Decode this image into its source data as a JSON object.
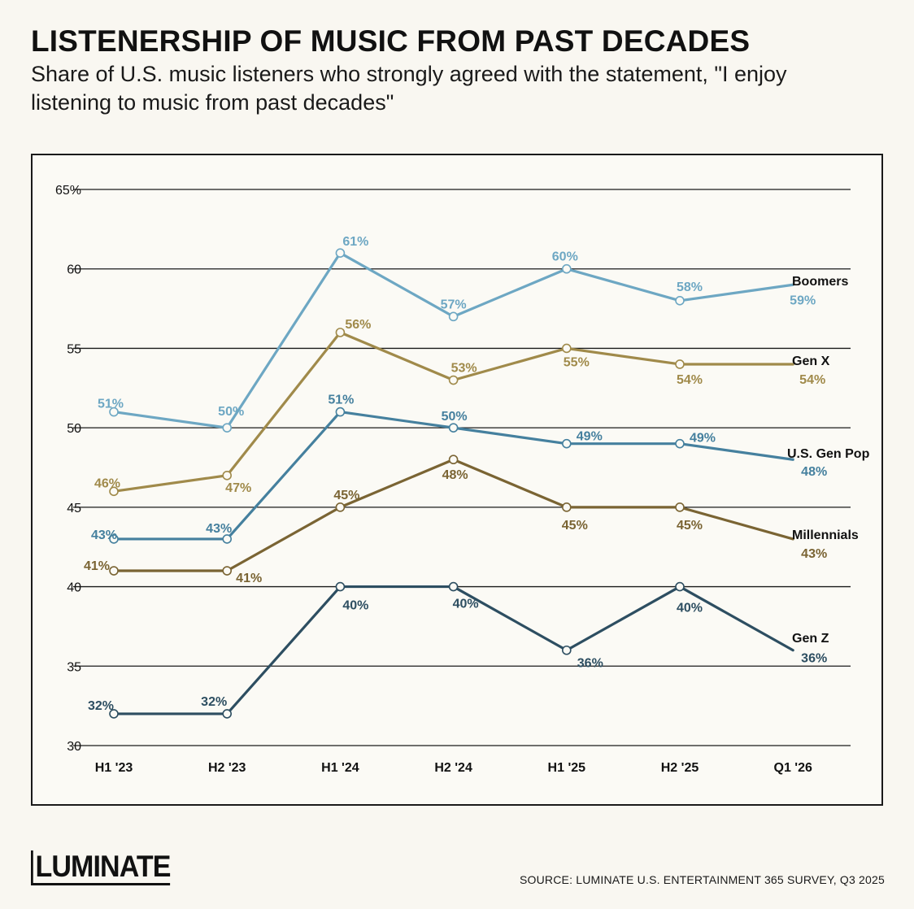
{
  "header": {
    "title": "LISTENERSHIP OF MUSIC FROM PAST DECADES",
    "subtitle": "Share of U.S. music listeners who strongly agreed with the statement, \"I enjoy listening to music from past decades\""
  },
  "footer": {
    "logo": "LUMINATE",
    "source": "SOURCE: LUMINATE U.S. ENTERTAINMENT 365 SURVEY, Q3 2025"
  },
  "chart_data": {
    "type": "line",
    "categories": [
      "H1 '23",
      "H2 '23",
      "H1 '24",
      "H2 '24",
      "H1 '25",
      "H2 '25",
      "Q1 '26"
    ],
    "ylim": [
      30,
      65
    ],
    "yticks": [
      30,
      35,
      40,
      45,
      50,
      55,
      60,
      65
    ],
    "ytick_labels": [
      "30",
      "35",
      "40",
      "45",
      "50",
      "55",
      "60",
      "65%"
    ],
    "grid": true,
    "value_suffix": "%",
    "series": [
      {
        "name": "Boomers",
        "color": "#6da7c3",
        "values": [
          51,
          50,
          61,
          57,
          60,
          58,
          59
        ]
      },
      {
        "name": "Gen X",
        "color": "#a08a4a",
        "values": [
          46,
          47,
          56,
          53,
          55,
          54,
          54
        ]
      },
      {
        "name": "U.S. Gen Pop",
        "color": "#45809e",
        "values": [
          43,
          43,
          51,
          50,
          49,
          49,
          48
        ]
      },
      {
        "name": "Millennials",
        "color": "#7a6433",
        "values": [
          41,
          41,
          45,
          48,
          45,
          45,
          43
        ]
      },
      {
        "name": "Gen Z",
        "color": "#2d4e61",
        "values": [
          32,
          32,
          40,
          40,
          36,
          40,
          36
        ]
      }
    ]
  }
}
